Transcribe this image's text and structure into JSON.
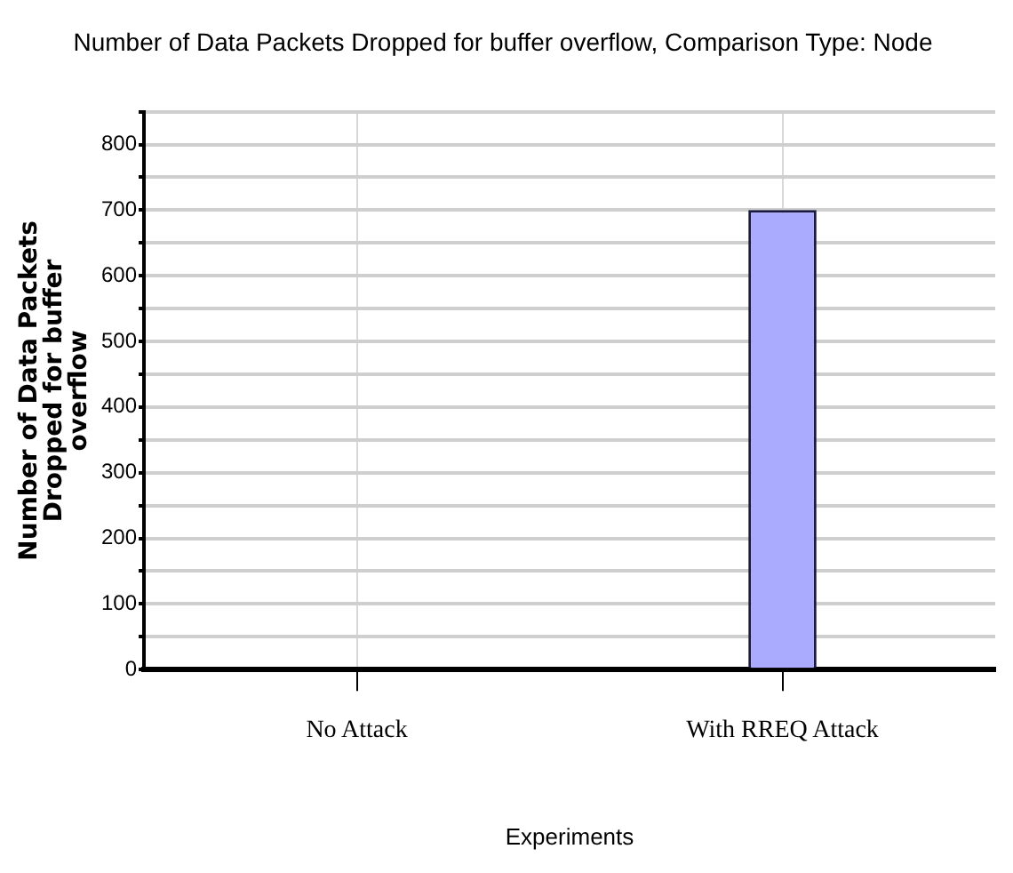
{
  "chart_data": {
    "type": "bar",
    "title": "Number of Data Packets Dropped for buffer overflow, Comparison Type: Node",
    "xlabel": "Experiments",
    "ylabel": "Number of Data Packets Dropped for buffer overflow",
    "categories": [
      "No Attack",
      "With RREQ Attack"
    ],
    "values": [
      0,
      700
    ],
    "color": "#aaaaff",
    "ylim": [
      0,
      850
    ],
    "yticks": [
      0,
      {
        "value": 50,
        "label": null
      },
      100,
      {
        "value": 150,
        "label": null
      },
      200,
      {
        "value": 250,
        "label": null
      },
      300,
      {
        "value": 350,
        "label": null
      },
      400,
      {
        "value": 450,
        "label": null
      },
      500,
      {
        "value": 550,
        "label": null
      },
      600,
      {
        "value": 650,
        "label": null
      },
      700,
      {
        "value": 750,
        "label": null
      },
      800,
      {
        "value": 850,
        "label": null
      }
    ],
    "grid": true
  }
}
